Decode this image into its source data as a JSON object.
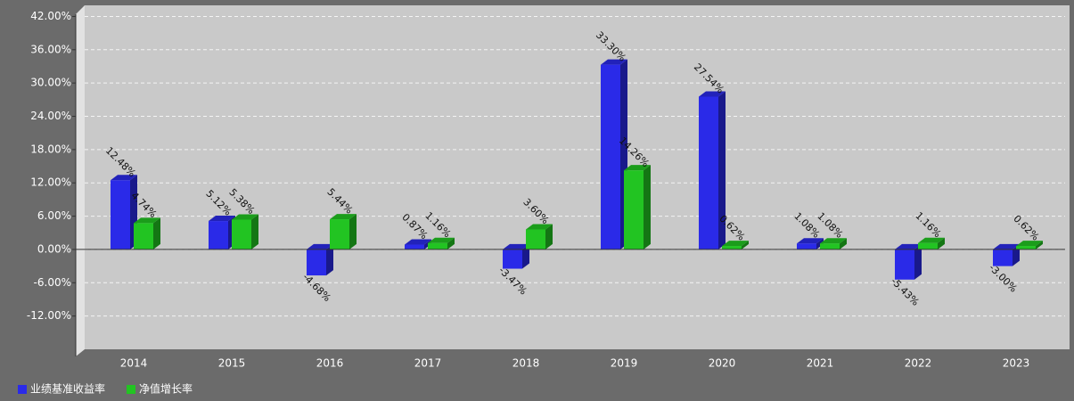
{
  "chart_data": {
    "type": "bar3d",
    "categories": [
      "2014",
      "2015",
      "2016",
      "2017",
      "2018",
      "2019",
      "2020",
      "2021",
      "2022",
      "2023"
    ],
    "series": [
      {
        "name": "业绩基准收益率",
        "color": "#2a2ae8",
        "values": [
          12.48,
          5.12,
          -4.68,
          0.87,
          -3.47,
          33.3,
          27.54,
          1.08,
          -5.43,
          -3.0
        ],
        "value_labels": [
          "12.48%",
          "5.12%",
          "-4.68%",
          "0.87%",
          "-3.47%",
          "33.30%",
          "27.54%",
          "1.08%",
          "-5.43%",
          "-3.00%"
        ]
      },
      {
        "name": "净值增长率",
        "color": "#22c422",
        "values": [
          4.74,
          5.38,
          5.44,
          1.16,
          3.6,
          14.26,
          0.62,
          1.08,
          1.16,
          0.62
        ],
        "value_labels": [
          "4.74%",
          "5.38%",
          "5.44%",
          "1.16%",
          "3.60%",
          "14.26%",
          "0.62%",
          "1.08%",
          "1.16%",
          "0.62%"
        ]
      }
    ],
    "ylim": [
      -18,
      44
    ],
    "yticks": [
      {
        "value": -12,
        "label": "-12.00%"
      },
      {
        "value": -6,
        "label": "-6.00%"
      },
      {
        "value": 0,
        "label": "0.00%"
      },
      {
        "value": 6,
        "label": "6.00%"
      },
      {
        "value": 12,
        "label": "12.00%"
      },
      {
        "value": 18,
        "label": "18.00%"
      },
      {
        "value": 24,
        "label": "24.00%"
      },
      {
        "value": 30,
        "label": "30.00%"
      },
      {
        "value": 36,
        "label": "36.00%"
      },
      {
        "value": 42,
        "label": "42.00%"
      }
    ],
    "grid": true
  }
}
